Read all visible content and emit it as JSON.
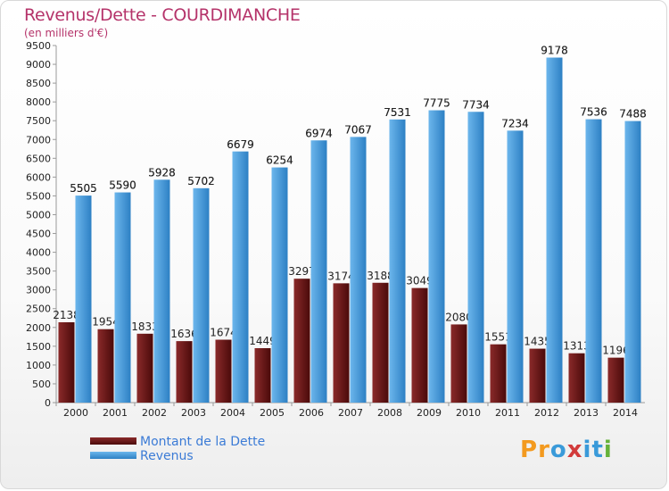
{
  "header": {
    "title": "Revenus/Dette - COURDIMANCHE",
    "subtitle": "(en milliers d'€)"
  },
  "legend": {
    "items": [
      {
        "label": "Montant de la Dette",
        "color": "#6e1a1a"
      },
      {
        "label": "Revenus",
        "color": "#3f97d9"
      }
    ]
  },
  "logo": {
    "text": "Proxiti",
    "letters": [
      "P",
      "r",
      "o",
      "x",
      "i",
      "t",
      "i"
    ]
  },
  "colors": {
    "dette_light": "#8a2a2a",
    "dette_dark": "#4a0a0a",
    "revenus_light": "#6cb6ec",
    "revenus_dark": "#2d80c4",
    "axis": "#9a9a9a",
    "grid": "#dcdcdc",
    "title": "#b5336a",
    "tick_text": "#222222"
  },
  "chart_data": {
    "type": "bar",
    "title": "Revenus/Dette - COURDIMANCHE",
    "subtitle": "(en milliers d'€)",
    "categories": [
      "2000",
      "2001",
      "2002",
      "2003",
      "2004",
      "2005",
      "2006",
      "2007",
      "2008",
      "2009",
      "2010",
      "2011",
      "2012",
      "2013",
      "2014"
    ],
    "series": [
      {
        "name": "Montant de la Dette",
        "values": [
          2138,
          1954,
          1833,
          1636,
          1674,
          1449,
          3297,
          3174,
          3188,
          3049,
          2080,
          1551,
          1435,
          1313,
          1196
        ],
        "labels": [
          "2138",
          "1954",
          "1833",
          "1636",
          "1674",
          "1449",
          "3297",
          "3174",
          "3188",
          "3049",
          "2080",
          "1551",
          "1435",
          "1313",
          "1196"
        ]
      },
      {
        "name": "Revenus",
        "values": [
          5505,
          5590,
          5928,
          5702,
          6679,
          6254,
          6974,
          7067,
          7531,
          7775,
          7734,
          7234,
          9178,
          7536,
          7488
        ],
        "labels": [
          "5505",
          "5590",
          "5928",
          "5702",
          "6679",
          "6254",
          "6974",
          "7067",
          "7531",
          "7775",
          "7734",
          "7234",
          "9178",
          "7536",
          "7488"
        ]
      }
    ],
    "ylim": [
      0,
      9500
    ],
    "yticks": [
      "0",
      "500",
      "1000",
      "1500",
      "2000",
      "2500",
      "3000",
      "3500",
      "4000",
      "4500",
      "5000",
      "5500",
      "6000",
      "6500",
      "7000",
      "7500",
      "8000",
      "8500",
      "9000",
      "9500"
    ],
    "xlabel": "",
    "ylabel": "",
    "grid": false,
    "legend_position": "bottom-left"
  }
}
